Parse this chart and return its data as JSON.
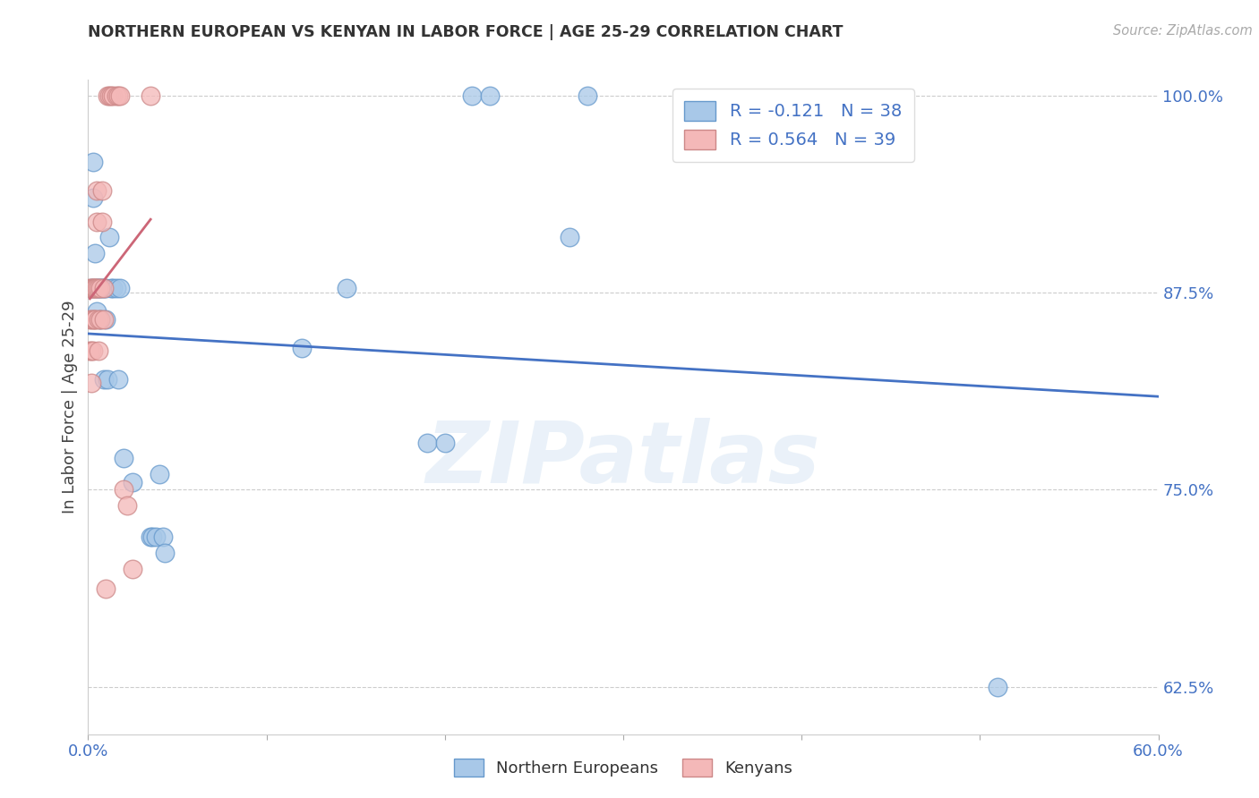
{
  "title": "NORTHERN EUROPEAN VS KENYAN IN LABOR FORCE | AGE 25-29 CORRELATION CHART",
  "source": "Source: ZipAtlas.com",
  "ylabel": "In Labor Force | Age 25-29",
  "xlim": [
    0.0,
    0.6
  ],
  "ylim": [
    0.595,
    1.01
  ],
  "xticks": [
    0.0,
    0.1,
    0.2,
    0.3,
    0.4,
    0.5,
    0.6
  ],
  "xticklabels": [
    "0.0%",
    "",
    "",
    "",
    "",
    "",
    "60.0%"
  ],
  "yticks": [
    0.625,
    0.75,
    0.875,
    1.0
  ],
  "yticklabels": [
    "62.5%",
    "75.0%",
    "87.5%",
    "100.0%"
  ],
  "blue_R": -0.121,
  "blue_N": 38,
  "pink_R": 0.564,
  "pink_N": 39,
  "blue_color": "#a8c8e8",
  "pink_color": "#f4b8b8",
  "blue_edge_color": "#6699cc",
  "pink_edge_color": "#cc8888",
  "blue_line_color": "#4472c4",
  "pink_line_color": "#cc6677",
  "legend_label_blue": "Northern Europeans",
  "legend_label_pink": "Kenyans",
  "watermark": "ZIPatlas",
  "blue_x": [
    0.002,
    0.003,
    0.003,
    0.004,
    0.005,
    0.005,
    0.006,
    0.007,
    0.007,
    0.008,
    0.009,
    0.009,
    0.01,
    0.01,
    0.011,
    0.012,
    0.013,
    0.014,
    0.016,
    0.017,
    0.018,
    0.02,
    0.025,
    0.035,
    0.036,
    0.038,
    0.04,
    0.042,
    0.043,
    0.12,
    0.145,
    0.19,
    0.2,
    0.215,
    0.225,
    0.27,
    0.28,
    0.51
  ],
  "blue_y": [
    0.878,
    0.958,
    0.935,
    0.9,
    0.878,
    0.863,
    0.878,
    0.878,
    0.858,
    0.878,
    0.82,
    0.878,
    0.878,
    0.858,
    0.82,
    0.91,
    0.878,
    0.878,
    0.878,
    0.82,
    0.878,
    0.77,
    0.755,
    0.72,
    0.72,
    0.72,
    0.76,
    0.72,
    0.71,
    0.84,
    0.878,
    0.78,
    0.78,
    1.0,
    1.0,
    0.91,
    1.0,
    0.625
  ],
  "pink_x": [
    0.001,
    0.001,
    0.001,
    0.002,
    0.002,
    0.002,
    0.002,
    0.003,
    0.003,
    0.003,
    0.003,
    0.004,
    0.004,
    0.004,
    0.004,
    0.005,
    0.005,
    0.005,
    0.006,
    0.006,
    0.006,
    0.007,
    0.007,
    0.008,
    0.008,
    0.009,
    0.009,
    0.01,
    0.011,
    0.012,
    0.013,
    0.014,
    0.016,
    0.017,
    0.018,
    0.02,
    0.022,
    0.025,
    0.035
  ],
  "pink_y": [
    0.878,
    0.858,
    0.838,
    0.878,
    0.858,
    0.838,
    0.818,
    0.878,
    0.878,
    0.858,
    0.838,
    0.878,
    0.858,
    0.878,
    0.858,
    0.94,
    0.92,
    0.878,
    0.878,
    0.858,
    0.838,
    0.878,
    0.858,
    0.94,
    0.92,
    0.878,
    0.858,
    0.687,
    1.0,
    1.0,
    1.0,
    1.0,
    1.0,
    1.0,
    1.0,
    0.75,
    0.74,
    0.7,
    1.0
  ],
  "background_color": "#ffffff",
  "grid_color": "#cccccc"
}
